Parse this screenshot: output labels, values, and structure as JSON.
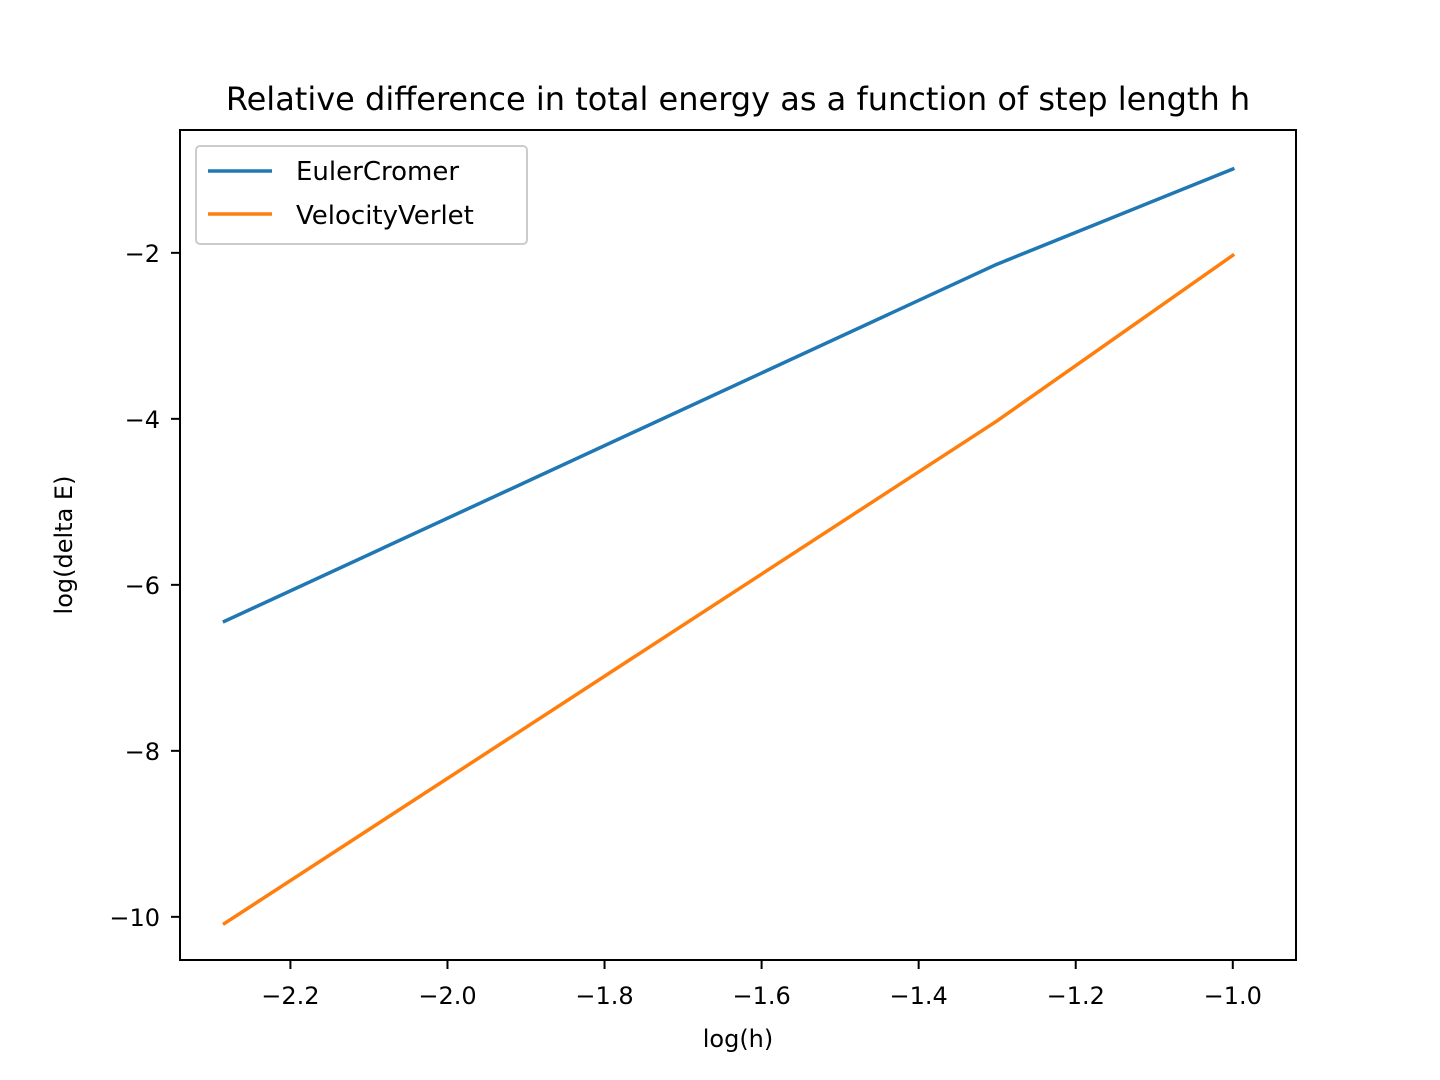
{
  "chart_data": {
    "type": "line",
    "title": "Relative difference in total energy as a function of step length h",
    "xlabel": "log(h)",
    "ylabel": "log(delta E)",
    "xlim": [
      -2.3406,
      -0.9195
    ],
    "ylim": [
      -10.52,
      -0.52
    ],
    "xticks": [
      -2.2,
      -2.0,
      -1.8,
      -1.6,
      -1.4,
      -1.2,
      -1.0
    ],
    "xtick_labels": [
      "−2.2",
      "−2.0",
      "−1.8",
      "−1.6",
      "−1.4",
      "−1.2",
      "−1.0"
    ],
    "yticks": [
      -2,
      -4,
      -6,
      -8,
      -10
    ],
    "ytick_labels": [
      "−2",
      "−4",
      "−6",
      "−8",
      "−10"
    ],
    "grid": false,
    "legend_position": "top-left",
    "series": [
      {
        "name": "EulerCromer",
        "color": "#1f77b4",
        "x": [
          -2.284,
          -1.301,
          -1.0
        ],
        "y": [
          -6.44,
          -2.14,
          -0.99
        ]
      },
      {
        "name": "VelocityVerlet",
        "color": "#ff7f0e",
        "x": [
          -2.284,
          -1.301,
          -1.0
        ],
        "y": [
          -10.08,
          -4.03,
          -2.03
        ]
      }
    ]
  }
}
